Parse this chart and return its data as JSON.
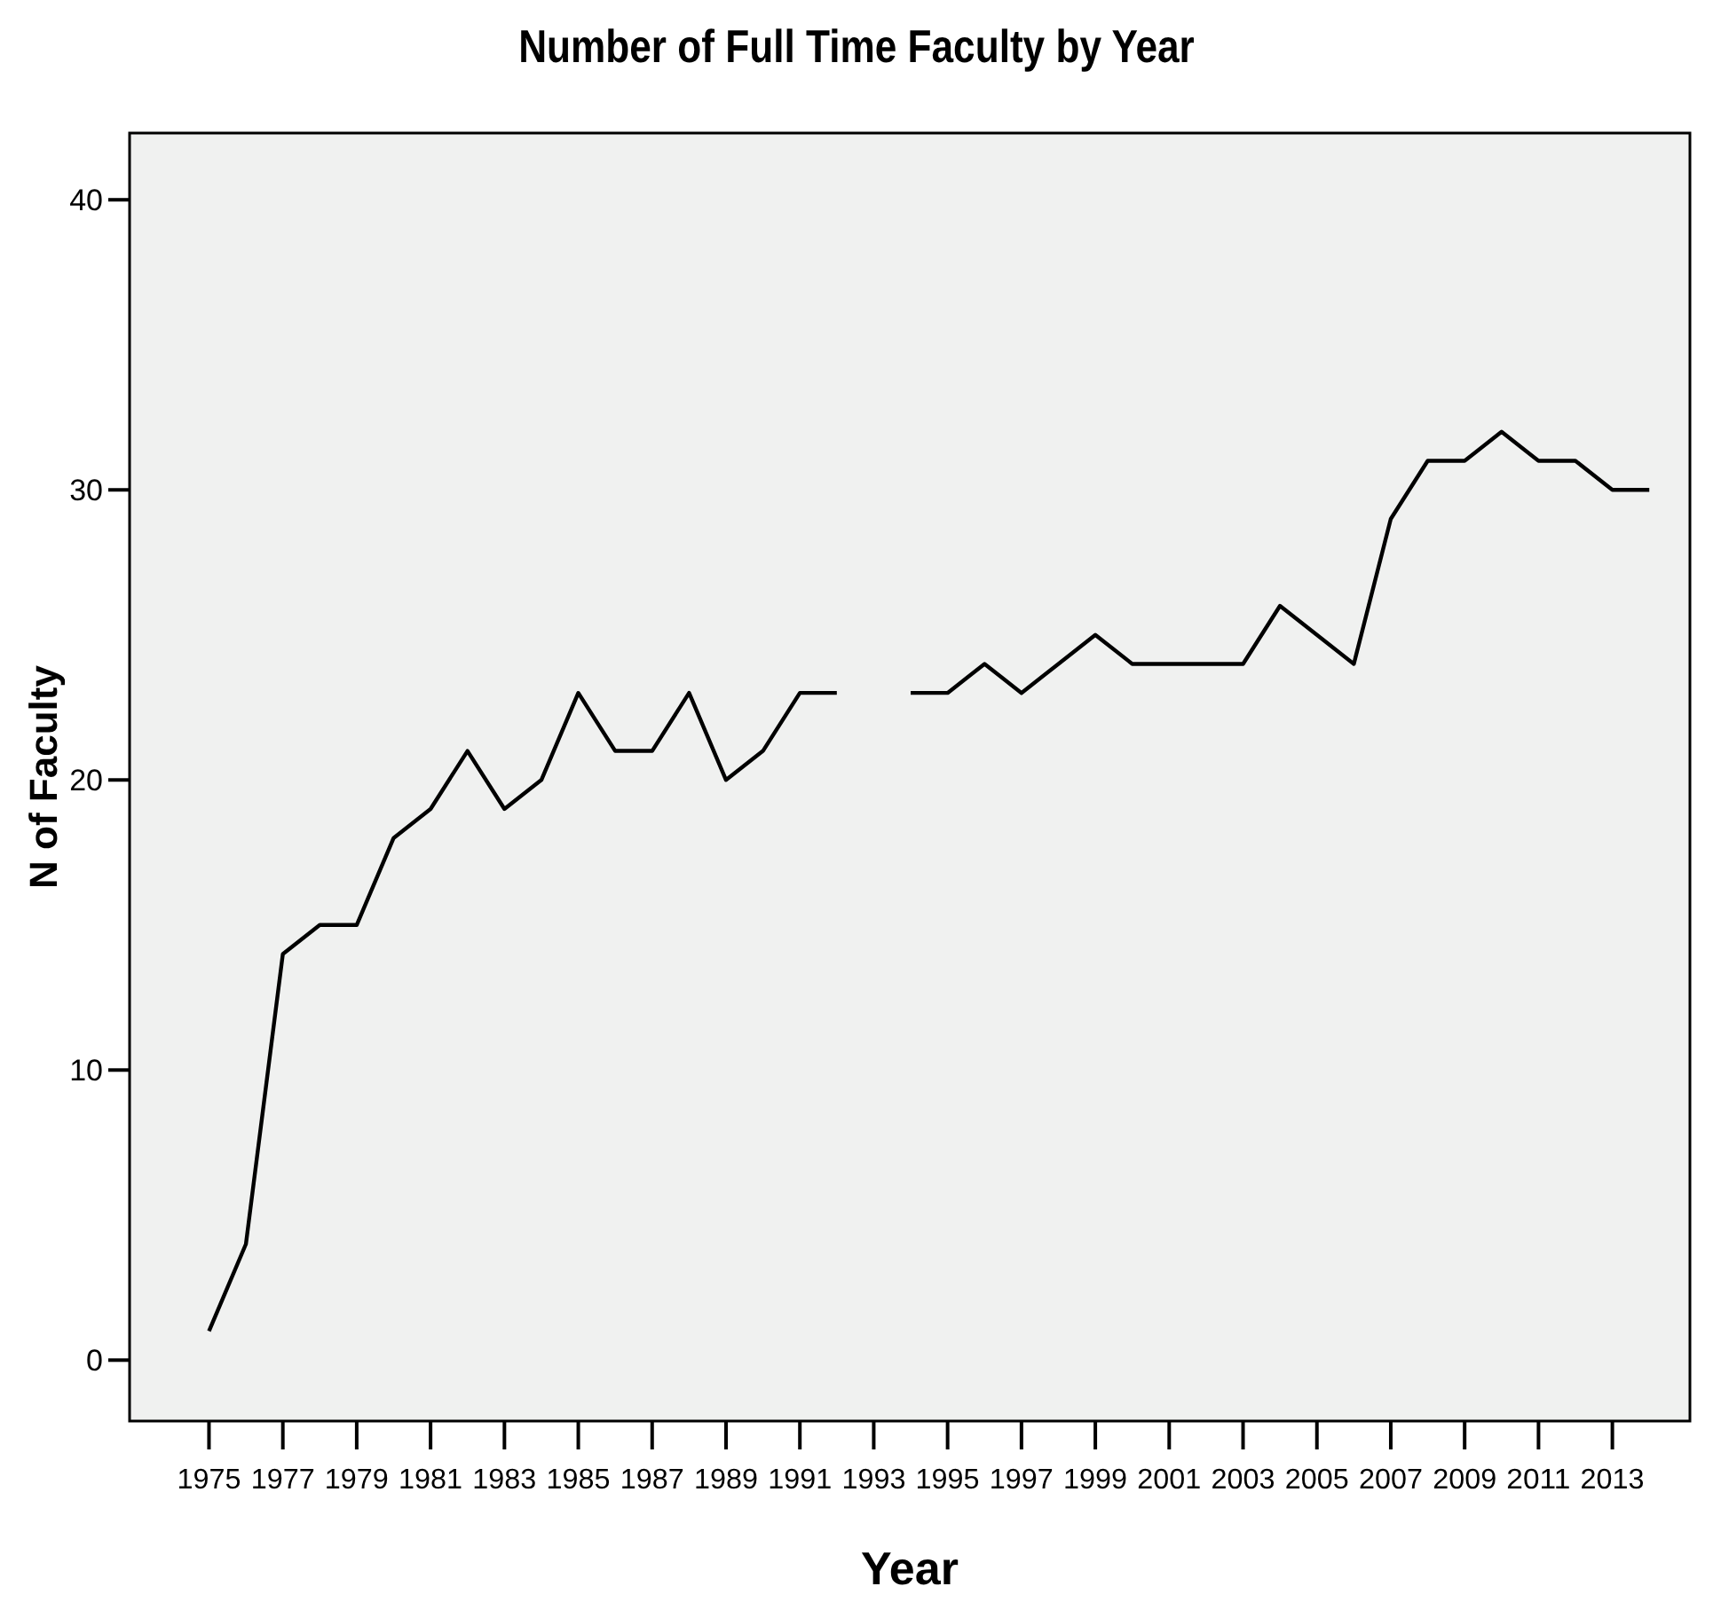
{
  "chart_data": {
    "type": "line",
    "title": "Number of Full Time Faculty by Year",
    "xlabel": "Year",
    "ylabel": "N of Faculty",
    "x": [
      1975,
      1976,
      1977,
      1978,
      1979,
      1980,
      1981,
      1982,
      1983,
      1984,
      1985,
      1986,
      1987,
      1988,
      1989,
      1990,
      1991,
      1992,
      1993,
      1994,
      1995,
      1996,
      1997,
      1998,
      1999,
      2000,
      2001,
      2002,
      2003,
      2004,
      2005,
      2006,
      2007,
      2008,
      2009,
      2010,
      2011,
      2012,
      2013,
      2014
    ],
    "series": [
      {
        "color": "#000000",
        "values": [
          1,
          4,
          14,
          15,
          15,
          18,
          19,
          21,
          19,
          20,
          23,
          21,
          21,
          23,
          20,
          21,
          23,
          23,
          null,
          23,
          23,
          24,
          23,
          24,
          25,
          24,
          24,
          24,
          24,
          26,
          25,
          24,
          29,
          31,
          31,
          32,
          31,
          31,
          30,
          30
        ]
      }
    ],
    "xlim": [
      1972.85,
      2015.1
    ],
    "xticks": [
      1975,
      1977,
      1979,
      1981,
      1983,
      1985,
      1987,
      1989,
      1991,
      1993,
      1995,
      1997,
      1999,
      2001,
      2003,
      2005,
      2007,
      2009,
      2011,
      2013
    ],
    "ylim": [
      -2.1,
      42.3
    ],
    "yticks": [
      0,
      10,
      20,
      30,
      40
    ],
    "grid": false,
    "marker": "none",
    "line_style": "solid"
  }
}
